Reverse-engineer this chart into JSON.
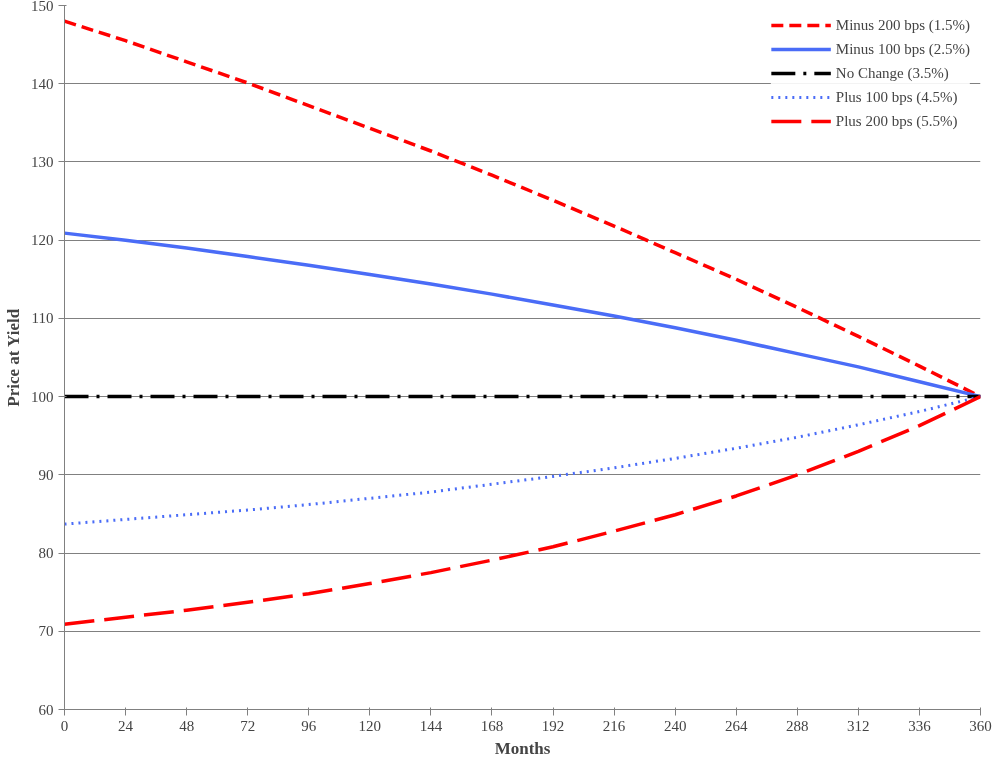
{
  "chart_data": {
    "type": "line",
    "xlabel": "Months",
    "ylabel": "Price at Yield",
    "x": [
      0,
      24,
      48,
      72,
      96,
      120,
      144,
      168,
      192,
      216,
      240,
      264,
      288,
      312,
      336,
      360
    ],
    "xlim": [
      0,
      360
    ],
    "xticks": [
      0,
      24,
      48,
      72,
      96,
      120,
      144,
      168,
      192,
      216,
      240,
      264,
      288,
      312,
      336,
      360
    ],
    "ylim": [
      60,
      150
    ],
    "yticks": [
      60,
      70,
      80,
      90,
      100,
      110,
      120,
      130,
      140,
      150
    ],
    "grid": "y",
    "legend": "top right",
    "marker": "none",
    "series": [
      {
        "name": "Minus 200 bps (1.5%)",
        "color": "#ff0000",
        "line_style": "dashed",
        "values": [
          148.0,
          145.5,
          142.8,
          140.1,
          137.2,
          134.3,
          131.4,
          128.3,
          125.1,
          121.8,
          118.4,
          115.0,
          111.4,
          107.7,
          103.9,
          100
        ]
      },
      {
        "name": "Minus 100 bps (2.5%)",
        "color": "#4a6cf7",
        "line_style": "solid",
        "values": [
          120.9,
          120.0,
          119.0,
          117.9,
          116.8,
          115.6,
          114.4,
          113.1,
          111.7,
          110.3,
          108.8,
          107.2,
          105.5,
          103.8,
          101.9,
          100
        ]
      },
      {
        "name": "No Change (3.5%)",
        "color": "#000000",
        "line_style": "dashdot",
        "values": [
          100,
          100,
          100,
          100,
          100,
          100,
          100,
          100,
          100,
          100,
          100,
          100,
          100,
          100,
          100,
          100
        ]
      },
      {
        "name": "Plus 100 bps (4.5%)",
        "color": "#4a6cf7",
        "line_style": "dotted",
        "values": [
          83.7,
          84.3,
          84.9,
          85.5,
          86.2,
          87.0,
          87.8,
          88.8,
          89.8,
          90.9,
          92.1,
          93.4,
          94.8,
          96.4,
          98.1,
          100
        ]
      },
      {
        "name": "Plus 200 bps (5.5%)",
        "color": "#ff0000",
        "line_style": "longdash",
        "values": [
          70.9,
          71.8,
          72.7,
          73.7,
          74.8,
          76.1,
          77.5,
          79.1,
          80.8,
          82.8,
          84.9,
          87.3,
          90.0,
          93.0,
          96.3,
          100
        ]
      }
    ]
  }
}
